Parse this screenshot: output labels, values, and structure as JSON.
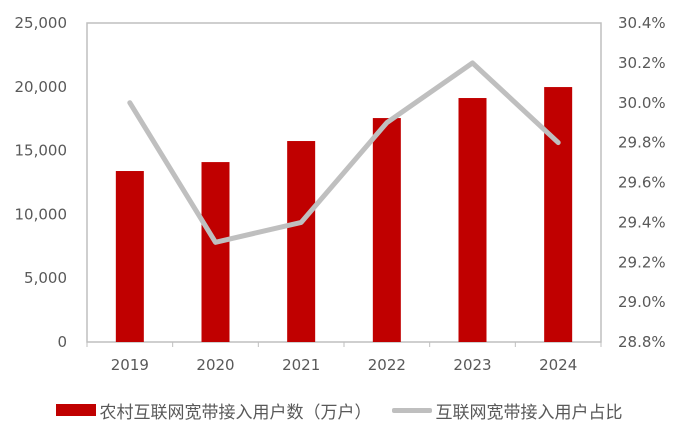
{
  "chart_data": {
    "type": "bar+line",
    "title": "",
    "categories": [
      "2019",
      "2020",
      "2021",
      "2022",
      "2023",
      "2024"
    ],
    "series": [
      {
        "name": "农村互联网宽带接入用户数（万户）",
        "type": "bar",
        "axis": "left",
        "color": "#C00000",
        "values": [
          13400,
          14100,
          15750,
          17550,
          19120,
          19980
        ]
      },
      {
        "name": "互联网宽带接入用户占比",
        "type": "line",
        "axis": "right",
        "color": "#BFBFBF",
        "values": [
          30.0,
          29.3,
          29.4,
          29.9,
          30.2,
          29.8
        ]
      }
    ],
    "left_axis": {
      "label": "",
      "ylim": [
        0,
        25000
      ],
      "ticks": [
        "0",
        "5,000",
        "10,000",
        "15,000",
        "20,000",
        "25,000"
      ]
    },
    "right_axis": {
      "label": "",
      "ylim": [
        28.8,
        30.4
      ],
      "ticks": [
        "28.8%",
        "29.0%",
        "29.2%",
        "29.4%",
        "29.6%",
        "29.8%",
        "30.0%",
        "30.2%",
        "30.4%"
      ]
    },
    "xlabel": "",
    "grid": false,
    "legend_position": "bottom"
  },
  "legend": {
    "bar_label": "农村互联网宽带接入用户数（万户）",
    "line_label": "互联网宽带接入用户占比"
  }
}
